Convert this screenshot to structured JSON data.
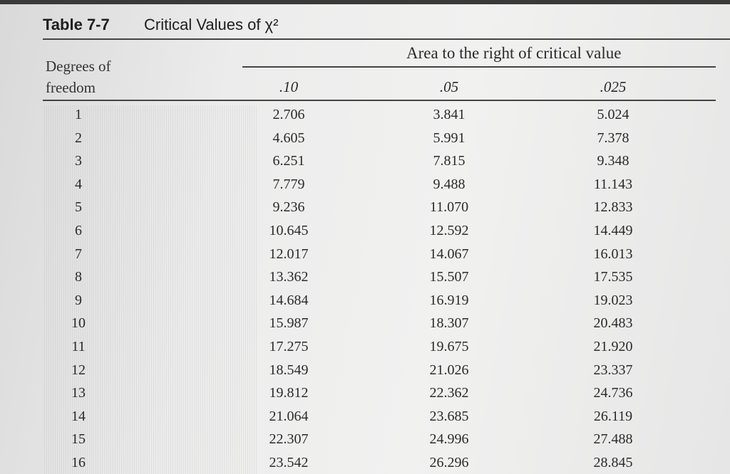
{
  "title": {
    "label": "Table 7-7",
    "text": "Critical Values of χ²"
  },
  "header": {
    "df": "Degrees of freedom",
    "area": "Area to the right of critical value",
    "columns": [
      ".10",
      ".05",
      ".025"
    ]
  },
  "table": {
    "rows": [
      [
        "1",
        "2.706",
        "3.841",
        "5.024"
      ],
      [
        "2",
        "4.605",
        "5.991",
        "7.378"
      ],
      [
        "3",
        "6.251",
        "7.815",
        "9.348"
      ],
      [
        "4",
        "7.779",
        "9.488",
        "11.143"
      ],
      [
        "5",
        "9.236",
        "11.070",
        "12.833"
      ],
      [
        "6",
        "10.645",
        "12.592",
        "14.449"
      ],
      [
        "7",
        "12.017",
        "14.067",
        "16.013"
      ],
      [
        "8",
        "13.362",
        "15.507",
        "17.535"
      ],
      [
        "9",
        "14.684",
        "16.919",
        "19.023"
      ],
      [
        "10",
        "15.987",
        "18.307",
        "20.483"
      ],
      [
        "11",
        "17.275",
        "19.675",
        "21.920"
      ],
      [
        "12",
        "18.549",
        "21.026",
        "23.337"
      ],
      [
        "13",
        "19.812",
        "22.362",
        "24.736"
      ],
      [
        "14",
        "21.064",
        "23.685",
        "26.119"
      ],
      [
        "15",
        "22.307",
        "24.996",
        "27.488"
      ],
      [
        "16",
        "23.542",
        "26.296",
        "28.845"
      ]
    ]
  }
}
